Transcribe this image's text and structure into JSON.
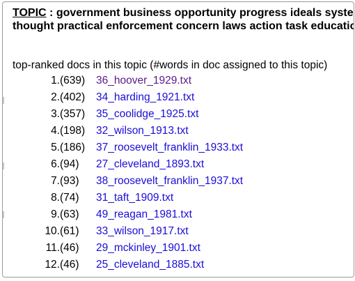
{
  "header": {
    "topic_word": "TOPIC",
    "line1_rest": " : government business opportunity progress ideals system",
    "line2": "thought practical enforcement concern laws action task education"
  },
  "subtitle": "top-ranked docs in this topic (#words in doc assigned to this topic)",
  "docs": [
    {
      "num": "1.",
      "count": "(639)",
      "name": "36_hoover_1929.txt",
      "visited": true
    },
    {
      "num": "2.",
      "count": "(402)",
      "name": "34_harding_1921.txt",
      "visited": false
    },
    {
      "num": "3.",
      "count": "(357)",
      "name": "35_coolidge_1925.txt",
      "visited": false
    },
    {
      "num": "4.",
      "count": "(198)",
      "name": "32_wilson_1913.txt",
      "visited": false
    },
    {
      "num": "5.",
      "count": "(186)",
      "name": "37_roosevelt_franklin_1933.txt",
      "visited": false
    },
    {
      "num": "6.",
      "count": "(94)",
      "name": "27_cleveland_1893.txt",
      "visited": false
    },
    {
      "num": "7.",
      "count": "(93)",
      "name": "38_roosevelt_franklin_1937.txt",
      "visited": false
    },
    {
      "num": "8.",
      "count": "(74)",
      "name": "31_taft_1909.txt",
      "visited": false
    },
    {
      "num": "9.",
      "count": "(63)",
      "name": "49_reagan_1981.txt",
      "visited": false
    },
    {
      "num": "10.",
      "count": "(61)",
      "name": "33_wilson_1917.txt",
      "visited": false
    },
    {
      "num": "11.",
      "count": "(46)",
      "name": "29_mckinley_1901.txt",
      "visited": false
    },
    {
      "num": "12.",
      "count": "(46)",
      "name": "25_cleveland_1885.txt",
      "visited": false
    }
  ],
  "colors": {
    "link": "#1a0dd8",
    "visited_link": "#5a1a8c"
  }
}
